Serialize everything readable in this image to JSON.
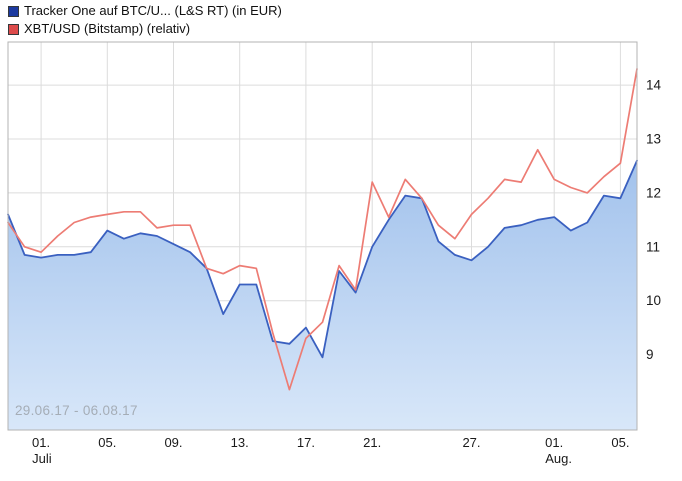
{
  "legend": {
    "items": [
      {
        "label": "Tracker One auf BTC/U... (L&S RT) (in EUR)",
        "color": "#1c3aa0"
      },
      {
        "label": "XBT/USD (Bitstamp) (relativ)",
        "color": "#dd4b4b"
      }
    ]
  },
  "watermark": "29.06.17 - 06.08.17",
  "chart_data": {
    "type": "line",
    "title": "Tracker One auf BTC/USD vs XBT/USD comparison chart",
    "x_axis": {
      "ticks": [
        {
          "index": 2,
          "label": "01.",
          "month": "Juli"
        },
        {
          "index": 6,
          "label": "05."
        },
        {
          "index": 10,
          "label": "09."
        },
        {
          "index": 14,
          "label": "13."
        },
        {
          "index": 18,
          "label": "17."
        },
        {
          "index": 22,
          "label": "21."
        },
        {
          "index": 28,
          "label": "27."
        },
        {
          "index": 33,
          "label": "01.",
          "month": "Aug."
        },
        {
          "index": 37,
          "label": "05."
        }
      ]
    },
    "y_axis": {
      "position": "right",
      "ticks": [
        9,
        10,
        11,
        12,
        13,
        14
      ],
      "ylim": [
        7.6,
        14.8
      ]
    },
    "grid": true,
    "date_range": "29.06.17 - 06.08.17",
    "series": [
      {
        "name": "Tracker One auf BTC/U... (L&S RT) (in EUR)",
        "color": "#3a60c0",
        "fill": true,
        "fill_top": "#a2c2ec",
        "fill_bottom": "#d8e7f9",
        "values": [
          11.6,
          10.85,
          10.8,
          10.85,
          10.85,
          10.9,
          11.3,
          11.15,
          11.25,
          11.2,
          11.05,
          10.9,
          10.6,
          9.75,
          10.3,
          10.3,
          9.25,
          9.2,
          9.5,
          8.95,
          10.55,
          10.15,
          11.0,
          11.5,
          11.95,
          11.9,
          11.1,
          10.85,
          10.75,
          11.0,
          11.35,
          11.4,
          11.5,
          11.55,
          11.3,
          11.45,
          11.95,
          11.9,
          12.6
        ]
      },
      {
        "name": "XBT/USD (Bitstamp) (relativ)",
        "color": "#ed7c74",
        "fill": false,
        "values": [
          11.45,
          11.0,
          10.9,
          11.2,
          11.45,
          11.55,
          11.6,
          11.65,
          11.65,
          11.35,
          11.4,
          11.4,
          10.6,
          10.5,
          10.65,
          10.6,
          9.4,
          8.35,
          9.3,
          9.6,
          10.65,
          10.2,
          12.2,
          11.55,
          12.25,
          11.9,
          11.4,
          11.15,
          11.6,
          11.9,
          12.25,
          12.2,
          12.8,
          12.25,
          12.1,
          12.0,
          12.3,
          12.55,
          14.3
        ]
      }
    ]
  }
}
